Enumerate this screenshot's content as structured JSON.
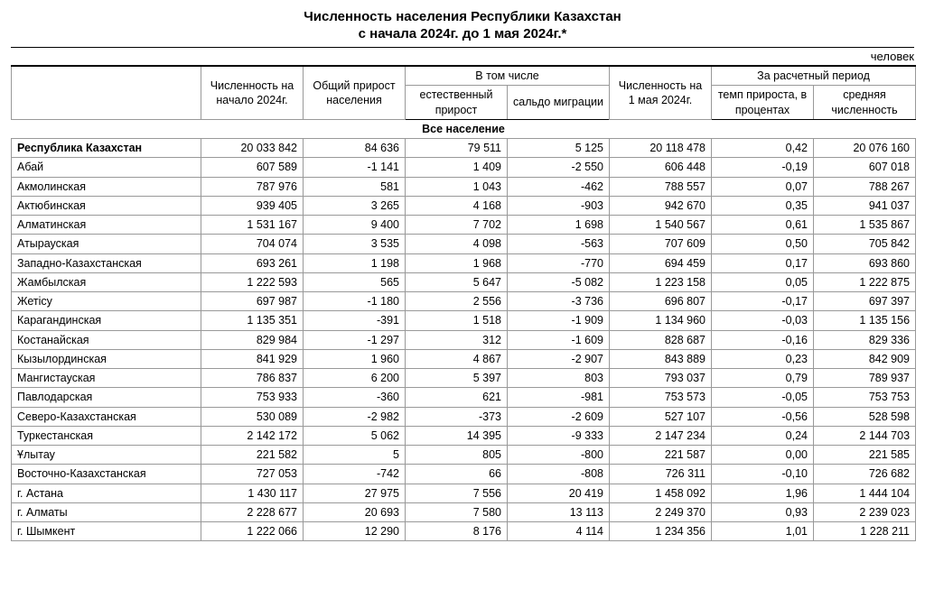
{
  "title1": "Численность населения Республики Казахстан",
  "title2": "с начала 2024г. до 1 мая 2024г.*",
  "unit": "человек",
  "headers": {
    "col_name_blank": "",
    "col_start": "Численность на начало 2024г.",
    "col_total_growth": "Общий прирост населения",
    "group_including": "В том числе",
    "col_natural": "естественный прирост",
    "col_migration": "сальдо миграции",
    "col_may": "Численность на 1 мая 2024г.",
    "group_period": "За расчетный период",
    "col_rate": "темп прироста, в процентах",
    "col_avg": "средняя численность"
  },
  "section_label": "Все население",
  "rows": [
    {
      "name": "Республика Казахстан",
      "start": "20 033 842",
      "growth": "84 636",
      "natural": "79 511",
      "migration": "5 125",
      "may": "20 118 478",
      "rate": "0,42",
      "avg": "20 076 160",
      "total": true
    },
    {
      "name": "Абай",
      "start": "607 589",
      "growth": "-1 141",
      "natural": "1 409",
      "migration": "-2 550",
      "may": "606 448",
      "rate": "-0,19",
      "avg": "607 018"
    },
    {
      "name": "Акмолинская",
      "start": "787 976",
      "growth": "581",
      "natural": "1 043",
      "migration": "-462",
      "may": "788 557",
      "rate": "0,07",
      "avg": "788 267"
    },
    {
      "name": "Актюбинская",
      "start": "939 405",
      "growth": "3 265",
      "natural": "4 168",
      "migration": "-903",
      "may": "942 670",
      "rate": "0,35",
      "avg": "941 037"
    },
    {
      "name": "Алматинская",
      "start": "1 531 167",
      "growth": "9 400",
      "natural": "7 702",
      "migration": "1 698",
      "may": "1 540 567",
      "rate": "0,61",
      "avg": "1 535 867"
    },
    {
      "name": "Атырауская",
      "start": "704 074",
      "growth": "3 535",
      "natural": "4 098",
      "migration": "-563",
      "may": "707 609",
      "rate": "0,50",
      "avg": "705 842"
    },
    {
      "name": "Западно-Казахстанская",
      "start": "693 261",
      "growth": "1 198",
      "natural": "1 968",
      "migration": "-770",
      "may": "694 459",
      "rate": "0,17",
      "avg": "693 860"
    },
    {
      "name": "Жамбылская",
      "start": "1 222 593",
      "growth": "565",
      "natural": "5 647",
      "migration": "-5 082",
      "may": "1 223 158",
      "rate": "0,05",
      "avg": "1 222 875"
    },
    {
      "name": "Жетісу",
      "start": "697 987",
      "growth": "-1 180",
      "natural": "2 556",
      "migration": "-3 736",
      "may": "696 807",
      "rate": "-0,17",
      "avg": "697 397"
    },
    {
      "name": "Карагандинская",
      "start": "1 135 351",
      "growth": "-391",
      "natural": "1 518",
      "migration": "-1 909",
      "may": "1 134 960",
      "rate": "-0,03",
      "avg": "1 135 156"
    },
    {
      "name": "Костанайская",
      "start": "829 984",
      "growth": "-1 297",
      "natural": "312",
      "migration": "-1 609",
      "may": "828 687",
      "rate": "-0,16",
      "avg": "829 336"
    },
    {
      "name": "Кызылординская",
      "start": "841 929",
      "growth": "1 960",
      "natural": "4 867",
      "migration": "-2 907",
      "may": "843 889",
      "rate": "0,23",
      "avg": "842 909"
    },
    {
      "name": "Мангистауская",
      "start": "786 837",
      "growth": "6 200",
      "natural": "5 397",
      "migration": "803",
      "may": "793 037",
      "rate": "0,79",
      "avg": "789 937"
    },
    {
      "name": "Павлодарская",
      "start": "753 933",
      "growth": "-360",
      "natural": "621",
      "migration": "-981",
      "may": "753 573",
      "rate": "-0,05",
      "avg": "753 753"
    },
    {
      "name": "Северо-Казахстанская",
      "start": "530 089",
      "growth": "-2 982",
      "natural": "-373",
      "migration": "-2 609",
      "may": "527 107",
      "rate": "-0,56",
      "avg": "528 598"
    },
    {
      "name": "Туркестанская",
      "start": "2 142 172",
      "growth": "5 062",
      "natural": "14 395",
      "migration": "-9 333",
      "may": "2 147 234",
      "rate": "0,24",
      "avg": "2 144 703"
    },
    {
      "name": "Ұлытау",
      "start": "221 582",
      "growth": "5",
      "natural": "805",
      "migration": "-800",
      "may": "221 587",
      "rate": "0,00",
      "avg": "221 585"
    },
    {
      "name": "Восточно-Казахстанская",
      "start": "727 053",
      "growth": "-742",
      "natural": "66",
      "migration": "-808",
      "may": "726 311",
      "rate": "-0,10",
      "avg": "726 682"
    },
    {
      "name": "г. Астана",
      "start": "1 430 117",
      "growth": "27 975",
      "natural": "7 556",
      "migration": "20 419",
      "may": "1 458 092",
      "rate": "1,96",
      "avg": "1 444 104"
    },
    {
      "name": "г. Алматы",
      "start": "2 228 677",
      "growth": "20 693",
      "natural": "7 580",
      "migration": "13 113",
      "may": "2 249 370",
      "rate": "0,93",
      "avg": "2 239 023"
    },
    {
      "name": "г. Шымкент",
      "start": "1 222 066",
      "growth": "12 290",
      "natural": "8 176",
      "migration": "4 114",
      "may": "1 234 356",
      "rate": "1,01",
      "avg": "1 228 211"
    }
  ]
}
